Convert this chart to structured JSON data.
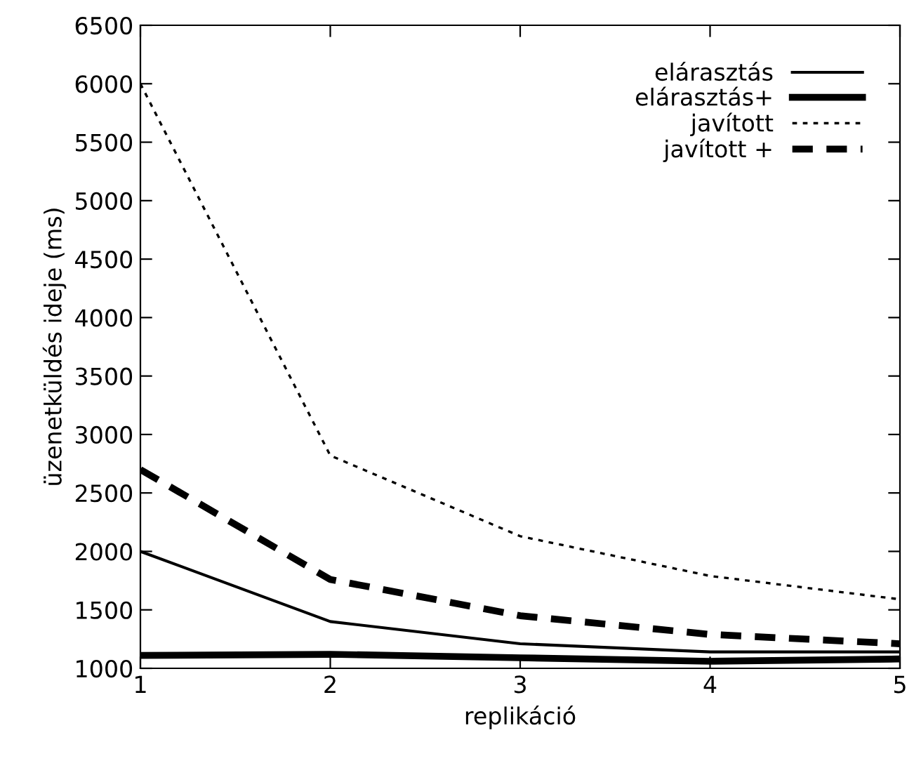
{
  "chart_data": {
    "type": "line",
    "xlabel": "replikáció",
    "ylabel": "üzenetküldés ideje (ms)",
    "x": [
      1,
      2,
      3,
      4,
      5
    ],
    "xlim": [
      1,
      5
    ],
    "xticks": [
      1,
      2,
      3,
      4,
      5
    ],
    "ylim": [
      1000,
      6500
    ],
    "yticks": [
      1000,
      1500,
      2000,
      2500,
      3000,
      3500,
      4000,
      4500,
      5000,
      5500,
      6000,
      6500
    ],
    "grid": false,
    "legend": "top right",
    "marker": "none",
    "series": [
      {
        "name": "elárasztás",
        "color": "#000000",
        "line_style": "solid",
        "values": [
          2000,
          1400,
          1210,
          1140,
          1140
        ]
      },
      {
        "name": "elárasztás+",
        "color": "#000000",
        "line_style": "solid",
        "values": [
          1110,
          1120,
          1090,
          1060,
          1080
        ]
      },
      {
        "name": "javított",
        "color": "#000000",
        "line_style": "dotted",
        "values": [
          6000,
          2820,
          2130,
          1790,
          1590
        ]
      },
      {
        "name": "javított +",
        "color": "#000000",
        "line_style": "dashed",
        "values": [
          2700,
          1760,
          1450,
          1290,
          1210
        ]
      }
    ]
  }
}
